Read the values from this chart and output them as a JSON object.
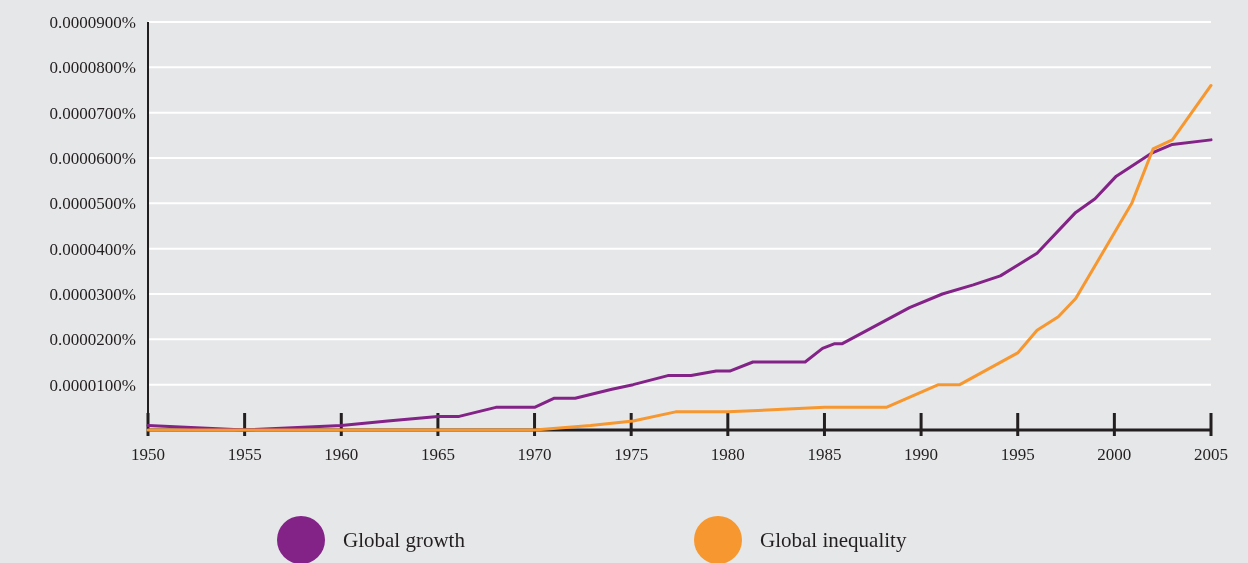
{
  "chart_data": {
    "type": "line",
    "xlim": [
      1950,
      2005
    ],
    "xticks": [
      1950,
      1955,
      1960,
      1965,
      1970,
      1975,
      1980,
      1985,
      1990,
      1995,
      2000,
      2005
    ],
    "ylim": [
      0,
      9e-05
    ],
    "yticks": [
      {
        "value": 0,
        "label": null
      },
      {
        "value": 1e-05,
        "label": "0.0000100%"
      },
      {
        "value": 2e-05,
        "label": "0.0000200%"
      },
      {
        "value": 3e-05,
        "label": "0.0000300%"
      },
      {
        "value": 4e-05,
        "label": "0.0000400%"
      },
      {
        "value": 5e-05,
        "label": "0.0000500%"
      },
      {
        "value": 6e-05,
        "label": "0.0000600%"
      },
      {
        "value": 7e-05,
        "label": "0.0000700%"
      },
      {
        "value": 8e-05,
        "label": "0.0000800%"
      },
      {
        "value": 9e-05,
        "label": "0.0000900%"
      }
    ],
    "grid": "y",
    "legend": "bottom",
    "series": [
      {
        "name": "Global growth",
        "color": "#832388",
        "x": [
          1950,
          1955,
          1960,
          1962.4,
          1965,
          1966.1,
          1968,
          1970,
          1971,
          1972.1,
          1974,
          1975.1,
          1976.9,
          1978.1,
          1979.4,
          1980.1,
          1981.3,
          1984,
          1984.9,
          1985.5,
          1985.9,
          1989.4,
          1991.1,
          1992.7,
          1994.1,
          1996,
          1998,
          1999,
          2000.1,
          2001.9,
          2003,
          2005
        ],
        "values": [
          1e-06,
          0,
          1e-06,
          2e-06,
          3e-06,
          3e-06,
          5e-06,
          5e-06,
          7e-06,
          7e-06,
          9e-06,
          1e-05,
          1.2e-05,
          1.2e-05,
          1.3e-05,
          1.3e-05,
          1.5e-05,
          1.5e-05,
          1.8e-05,
          1.9e-05,
          1.9e-05,
          2.7e-05,
          3e-05,
          3.2e-05,
          3.4e-05,
          3.9e-05,
          4.8e-05,
          5.1e-05,
          5.6e-05,
          6.1e-05,
          6.3e-05,
          6.4e-05
        ]
      },
      {
        "name": "Global inequality",
        "color": "#f7972f",
        "x": [
          1950,
          1970,
          1972.9,
          1975.1,
          1977.3,
          1978.7,
          1980,
          1985,
          1988.2,
          1990.9,
          1992,
          1995,
          1996,
          1997.1,
          1998,
          2000.9,
          2002,
          2003,
          2005
        ],
        "values": [
          0,
          0,
          1e-06,
          2e-06,
          4e-06,
          4e-06,
          4e-06,
          5e-06,
          5e-06,
          1e-05,
          1e-05,
          1.7e-05,
          2.2e-05,
          2.5e-05,
          2.9e-05,
          5e-05,
          6.2e-05,
          6.4e-05,
          7.6e-05
        ]
      }
    ]
  }
}
